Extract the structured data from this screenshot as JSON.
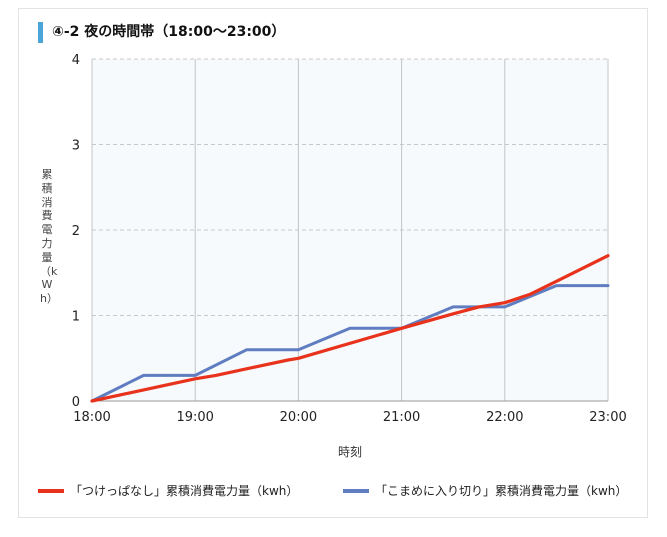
{
  "title": "④-2 夜の時間帯（18:00〜23:00）",
  "chart_data": {
    "type": "line",
    "xlabel": "時刻",
    "ylabel": "累積消費電力量（kWh）",
    "x_ticks": [
      "18:00",
      "19:00",
      "20:00",
      "21:00",
      "22:00",
      "23:00"
    ],
    "y_ticks": [
      "0",
      "1",
      "2",
      "3",
      "4"
    ],
    "xlim": [
      18,
      23
    ],
    "ylim": [
      0,
      4
    ],
    "grid": true,
    "legend_position": "bottom",
    "series": [
      {
        "name": "「つけっぱなし」累積消費電力量（kwh）",
        "color": "#e8321c",
        "x": [
          18.0,
          19.0,
          19.2,
          19.9,
          20.0,
          21.0,
          21.5,
          21.75,
          22.0,
          22.25,
          22.5,
          23.0
        ],
        "y": [
          0.0,
          0.26,
          0.3,
          0.48,
          0.5,
          0.85,
          1.02,
          1.1,
          1.15,
          1.25,
          1.4,
          1.7
        ]
      },
      {
        "name": "「こまめに入り切り」累積消費電力量（kwh）",
        "color": "#5f7dc0",
        "x": [
          18.0,
          18.5,
          19.0,
          19.5,
          20.0,
          20.5,
          21.0,
          21.5,
          22.0,
          22.5,
          23.0
        ],
        "y": [
          0.0,
          0.3,
          0.3,
          0.6,
          0.6,
          0.85,
          0.85,
          1.1,
          1.1,
          1.35,
          1.35
        ]
      }
    ]
  }
}
